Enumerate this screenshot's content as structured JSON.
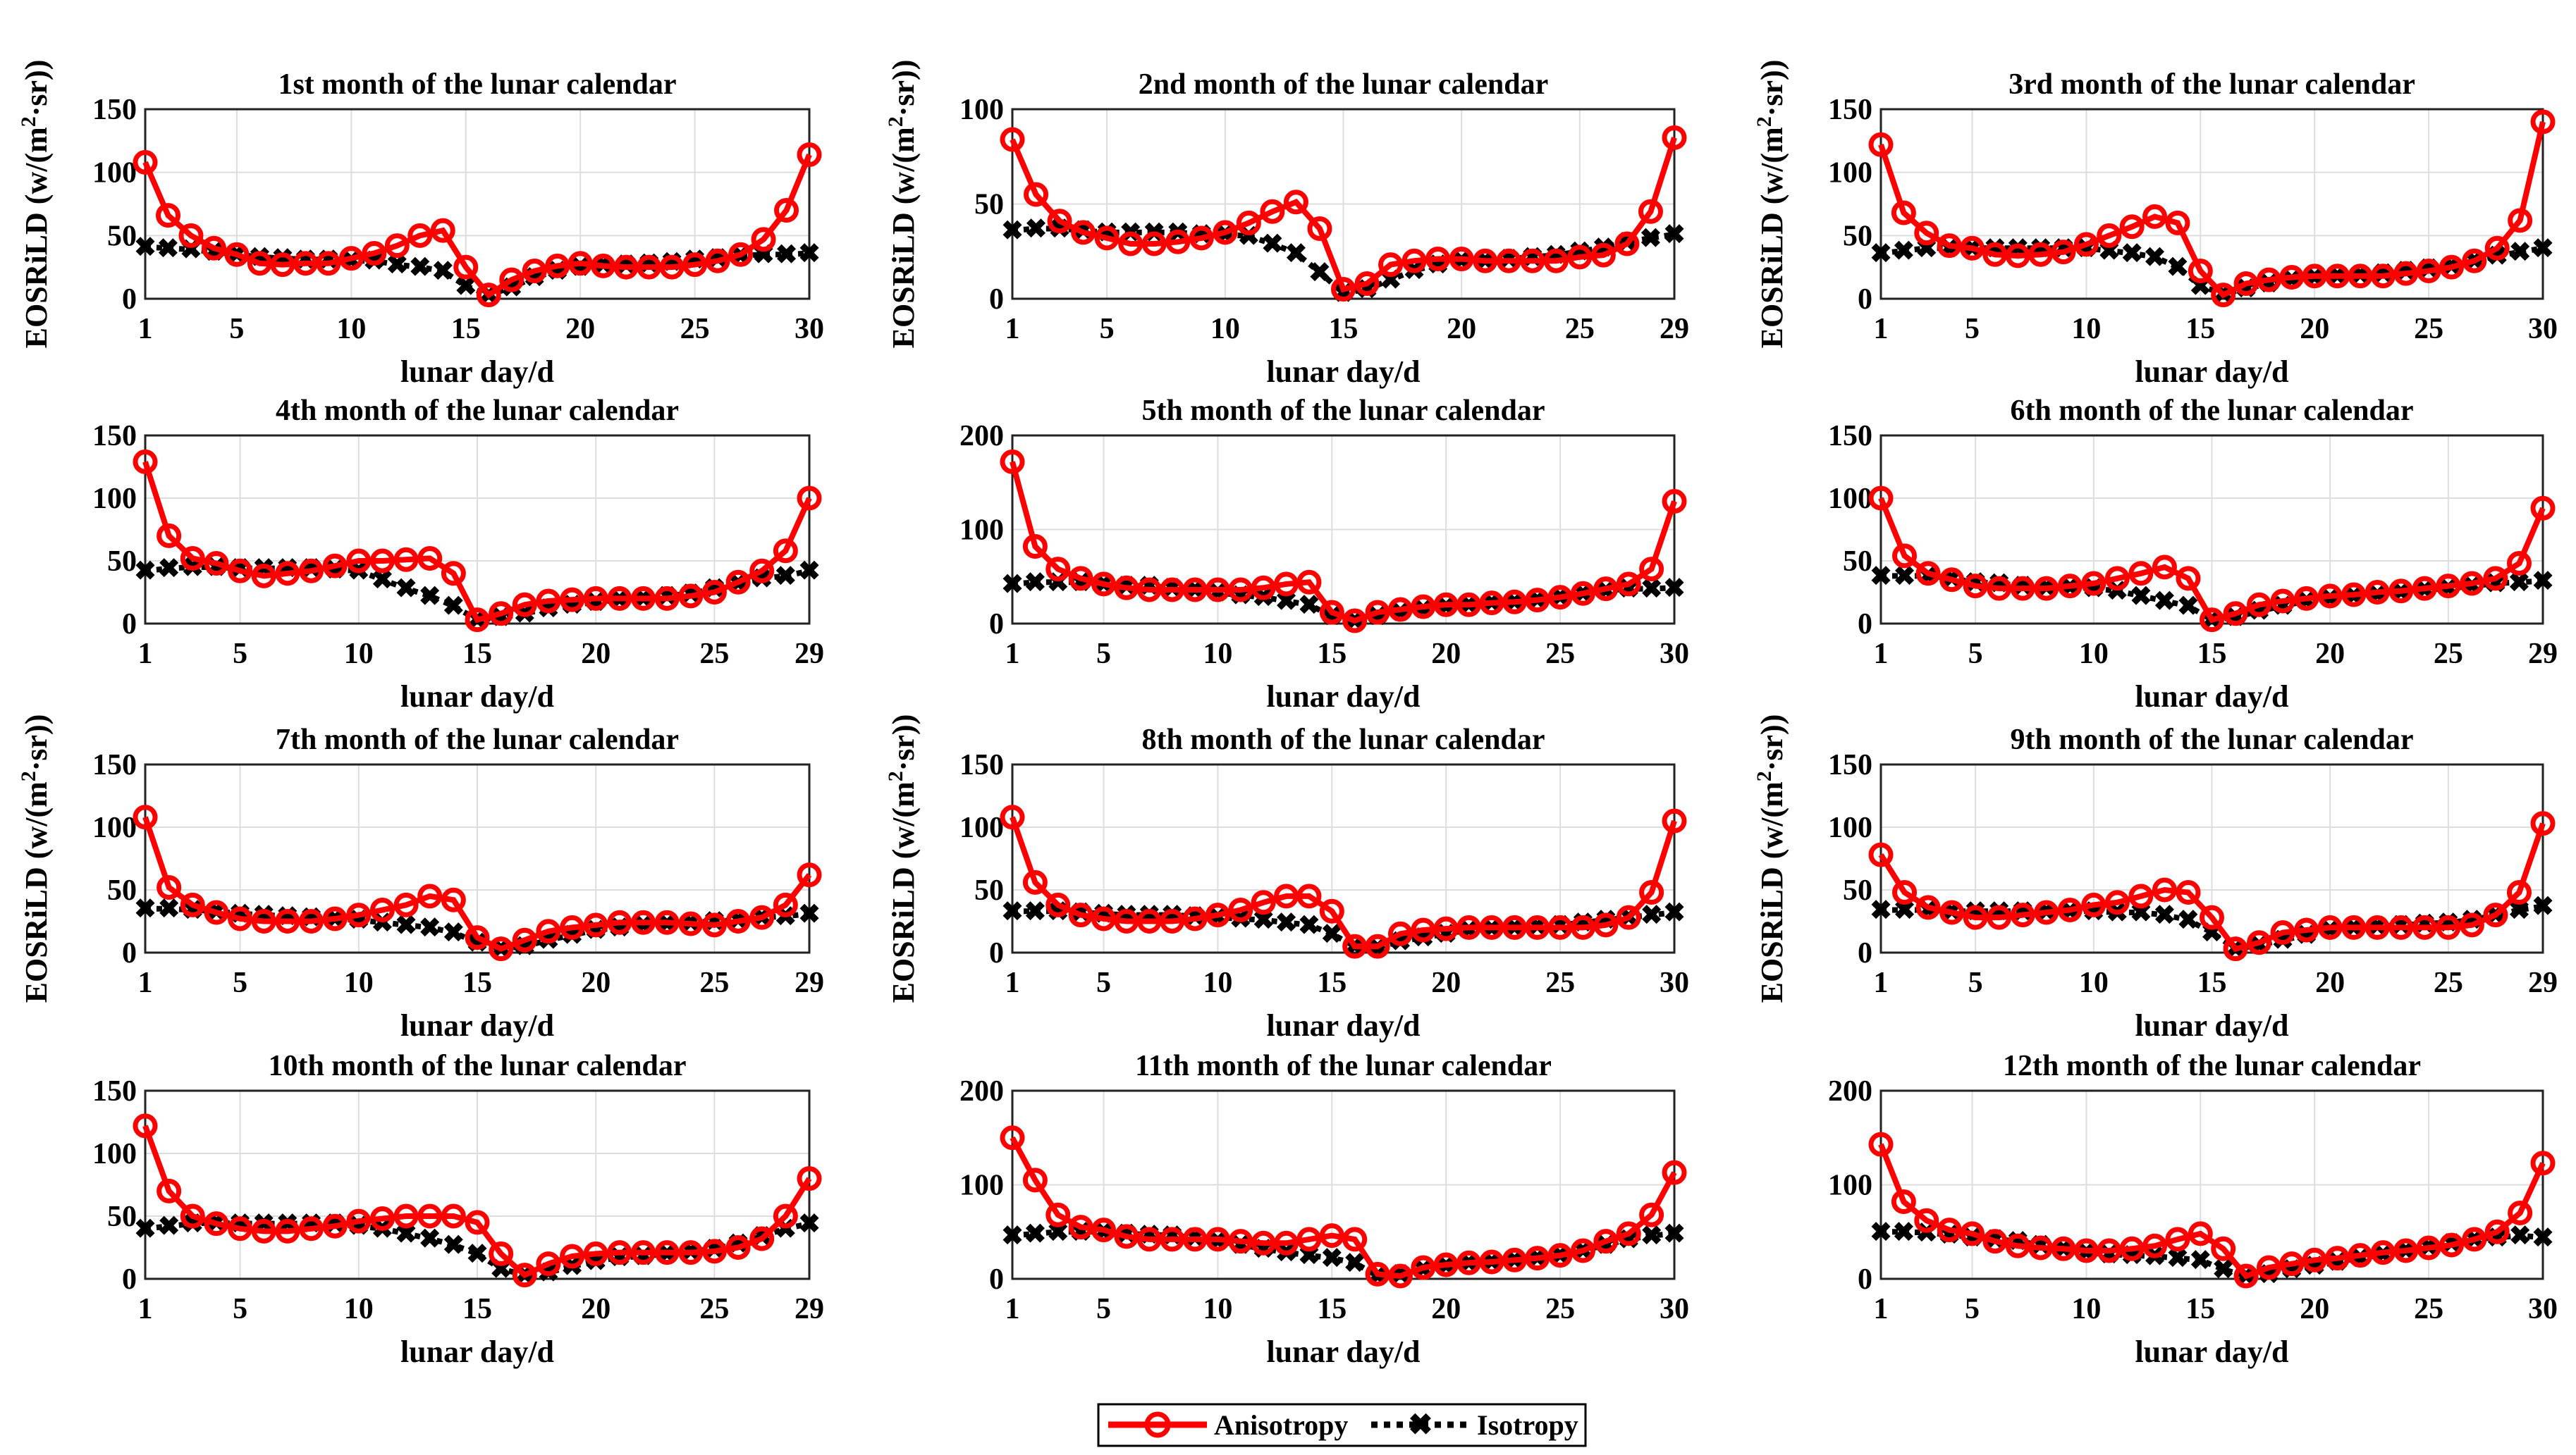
{
  "colors": {
    "anisotropy": "#ff0000",
    "isotropy": "#000000",
    "grid": "#dddddd"
  },
  "ylabel_text": "EOSRiLD (w/(m",
  "ylabel_sup": "2",
  "ylabel_tail": "·sr))",
  "xlabel": "lunar day/d",
  "legend": {
    "anisotropy": "Anisotropy",
    "isotropy": "Isotropy"
  },
  "chart_data": [
    {
      "type": "line",
      "title": "1st month of the lunar calendar",
      "ylim": [
        0,
        150
      ],
      "yticks": [
        0,
        50,
        100,
        150
      ],
      "xticks": [
        1,
        5,
        10,
        15,
        20,
        25,
        30
      ],
      "days": 30,
      "series": [
        {
          "name": "Anisotropy",
          "values": [
            108,
            66,
            50,
            40,
            35,
            28,
            27,
            28,
            28,
            32,
            36,
            42,
            50,
            54,
            25,
            3,
            15,
            22,
            26,
            28,
            26,
            25,
            25,
            25,
            27,
            30,
            35,
            47,
            70,
            114
          ]
        },
        {
          "name": "Isotropy",
          "values": [
            41,
            40,
            39,
            37,
            35,
            33,
            32,
            31,
            31,
            30,
            30,
            27,
            25,
            22,
            10,
            3,
            9,
            17,
            22,
            25,
            27,
            27,
            28,
            29,
            31,
            32,
            34,
            35,
            35,
            36
          ]
        }
      ]
    },
    {
      "type": "line",
      "title": "2nd month of the lunar calendar",
      "ylim": [
        0,
        100
      ],
      "yticks": [
        0,
        50,
        100
      ],
      "xticks": [
        1,
        5,
        10,
        15,
        20,
        25,
        29
      ],
      "days": 29,
      "series": [
        {
          "name": "Anisotropy",
          "values": [
            84,
            55,
            41,
            35,
            32,
            29,
            29,
            30,
            32,
            35,
            40,
            46,
            51,
            37,
            5,
            8,
            18,
            20,
            21,
            21,
            20,
            20,
            20,
            20,
            22,
            23,
            29,
            46,
            85
          ]
        },
        {
          "name": "Isotropy",
          "values": [
            36,
            37,
            37,
            36,
            35,
            35,
            35,
            35,
            34,
            34,
            33,
            29,
            24,
            14,
            3,
            5,
            10,
            15,
            18,
            20,
            20,
            21,
            22,
            23,
            25,
            27,
            30,
            32,
            34
          ]
        }
      ]
    },
    {
      "type": "line",
      "title": "3rd month of the lunar calendar",
      "ylim": [
        0,
        150
      ],
      "yticks": [
        0,
        50,
        100,
        150
      ],
      "xticks": [
        1,
        5,
        10,
        15,
        20,
        25,
        30
      ],
      "days": 30,
      "series": [
        {
          "name": "Anisotropy",
          "values": [
            122,
            68,
            52,
            42,
            40,
            35,
            34,
            35,
            37,
            43,
            50,
            57,
            65,
            60,
            22,
            3,
            12,
            15,
            17,
            18,
            18,
            18,
            18,
            20,
            22,
            25,
            30,
            40,
            62,
            140
          ]
        },
        {
          "name": "Isotropy",
          "values": [
            36,
            38,
            40,
            40,
            40,
            40,
            40,
            40,
            40,
            40,
            38,
            36,
            33,
            25,
            10,
            4,
            8,
            12,
            15,
            17,
            18,
            19,
            20,
            22,
            24,
            26,
            30,
            34,
            37,
            40
          ]
        }
      ]
    },
    {
      "type": "line",
      "title": "4th month of the lunar calendar",
      "ylim": [
        0,
        150
      ],
      "yticks": [
        0,
        50,
        100,
        150
      ],
      "xticks": [
        1,
        5,
        10,
        15,
        20,
        25,
        29
      ],
      "days": 29,
      "series": [
        {
          "name": "Anisotropy",
          "values": [
            129,
            70,
            52,
            48,
            42,
            38,
            40,
            42,
            46,
            50,
            50,
            51,
            52,
            40,
            3,
            8,
            15,
            18,
            19,
            20,
            20,
            20,
            20,
            22,
            25,
            33,
            42,
            58,
            100
          ]
        },
        {
          "name": "Isotropy",
          "values": [
            42,
            44,
            45,
            45,
            44,
            44,
            44,
            44,
            43,
            42,
            35,
            28,
            22,
            14,
            3,
            5,
            8,
            12,
            15,
            17,
            19,
            20,
            22,
            24,
            28,
            32,
            36,
            38,
            42
          ]
        }
      ]
    },
    {
      "type": "line",
      "title": "5th month of the lunar calendar",
      "ylim": [
        0,
        200
      ],
      "yticks": [
        0,
        100,
        200
      ],
      "xticks": [
        1,
        5,
        10,
        15,
        20,
        25,
        30
      ],
      "days": 30,
      "series": [
        {
          "name": "Anisotropy",
          "values": [
            172,
            82,
            58,
            48,
            42,
            38,
            36,
            36,
            36,
            36,
            36,
            38,
            42,
            44,
            12,
            3,
            12,
            15,
            18,
            20,
            20,
            22,
            23,
            25,
            28,
            32,
            37,
            42,
            58,
            130
          ]
        },
        {
          "name": "Isotropy",
          "values": [
            42,
            44,
            44,
            44,
            42,
            40,
            40,
            38,
            36,
            33,
            30,
            28,
            24,
            20,
            8,
            3,
            8,
            12,
            15,
            18,
            20,
            22,
            23,
            25,
            28,
            32,
            35,
            37,
            37,
            38
          ]
        }
      ]
    },
    {
      "type": "line",
      "title": "6th month of the lunar calendar",
      "ylim": [
        0,
        150
      ],
      "yticks": [
        0,
        50,
        100,
        150
      ],
      "xticks": [
        1,
        5,
        10,
        15,
        20,
        25,
        29
      ],
      "days": 29,
      "series": [
        {
          "name": "Anisotropy",
          "values": [
            100,
            54,
            40,
            35,
            30,
            28,
            28,
            28,
            30,
            32,
            36,
            40,
            45,
            36,
            3,
            8,
            15,
            18,
            20,
            22,
            23,
            25,
            26,
            28,
            30,
            32,
            36,
            48,
            92
          ]
        },
        {
          "name": "Isotropy",
          "values": [
            38,
            38,
            38,
            36,
            33,
            32,
            30,
            29,
            29,
            28,
            26,
            22,
            18,
            14,
            3,
            5,
            10,
            14,
            18,
            20,
            22,
            23,
            25,
            27,
            28,
            30,
            32,
            33,
            34
          ]
        }
      ]
    },
    {
      "type": "line",
      "title": "7th month of the lunar calendar",
      "ylim": [
        0,
        150
      ],
      "yticks": [
        0,
        50,
        100,
        150
      ],
      "xticks": [
        1,
        5,
        10,
        15,
        20,
        25,
        29
      ],
      "days": 29,
      "series": [
        {
          "name": "Anisotropy",
          "values": [
            108,
            52,
            38,
            32,
            27,
            25,
            25,
            25,
            27,
            30,
            34,
            38,
            45,
            42,
            12,
            3,
            10,
            17,
            20,
            22,
            24,
            24,
            24,
            23,
            22,
            25,
            28,
            38,
            62
          ]
        },
        {
          "name": "Isotropy",
          "values": [
            35,
            35,
            34,
            33,
            31,
            30,
            29,
            28,
            27,
            26,
            24,
            22,
            20,
            16,
            8,
            3,
            5,
            10,
            14,
            18,
            20,
            22,
            23,
            24,
            25,
            26,
            28,
            29,
            31
          ]
        }
      ]
    },
    {
      "type": "line",
      "title": "8th month of the lunar calendar",
      "ylim": [
        0,
        150
      ],
      "yticks": [
        0,
        50,
        100,
        150
      ],
      "xticks": [
        1,
        5,
        10,
        15,
        20,
        25,
        30
      ],
      "days": 30,
      "series": [
        {
          "name": "Anisotropy",
          "values": [
            108,
            56,
            38,
            30,
            27,
            25,
            25,
            25,
            27,
            30,
            34,
            40,
            45,
            45,
            33,
            5,
            5,
            15,
            18,
            19,
            20,
            20,
            20,
            20,
            20,
            20,
            22,
            28,
            48,
            105
          ]
        },
        {
          "name": "Isotropy",
          "values": [
            33,
            33,
            33,
            32,
            31,
            30,
            30,
            30,
            29,
            28,
            27,
            26,
            24,
            22,
            15,
            5,
            4,
            9,
            12,
            15,
            18,
            19,
            20,
            21,
            22,
            24,
            26,
            28,
            30,
            32
          ]
        }
      ]
    },
    {
      "type": "line",
      "title": "9th month of the lunar calendar",
      "ylim": [
        0,
        150
      ],
      "yticks": [
        0,
        50,
        100,
        150
      ],
      "xticks": [
        1,
        5,
        10,
        15,
        20,
        25,
        29
      ],
      "days": 29,
      "series": [
        {
          "name": "Anisotropy",
          "values": [
            78,
            48,
            36,
            32,
            28,
            28,
            30,
            32,
            34,
            38,
            40,
            45,
            50,
            48,
            28,
            3,
            8,
            16,
            18,
            20,
            20,
            20,
            20,
            20,
            20,
            22,
            30,
            48,
            103
          ]
        },
        {
          "name": "Isotropy",
          "values": [
            34,
            34,
            34,
            33,
            33,
            33,
            33,
            33,
            33,
            33,
            32,
            32,
            30,
            26,
            16,
            3,
            6,
            10,
            14,
            18,
            20,
            21,
            22,
            23,
            24,
            26,
            30,
            34,
            37
          ]
        }
      ]
    },
    {
      "type": "line",
      "title": "10th month of the lunar calendar",
      "ylim": [
        0,
        150
      ],
      "yticks": [
        0,
        50,
        100,
        150
      ],
      "xticks": [
        1,
        5,
        10,
        15,
        20,
        25,
        29
      ],
      "days": 29,
      "series": [
        {
          "name": "Anisotropy",
          "values": [
            122,
            70,
            50,
            44,
            40,
            38,
            38,
            40,
            42,
            46,
            48,
            50,
            50,
            50,
            45,
            20,
            3,
            12,
            18,
            20,
            21,
            21,
            21,
            21,
            22,
            25,
            32,
            50,
            80
          ]
        },
        {
          "name": "Isotropy",
          "values": [
            40,
            42,
            44,
            45,
            44,
            44,
            44,
            44,
            44,
            42,
            40,
            36,
            32,
            27,
            20,
            8,
            3,
            5,
            10,
            14,
            17,
            18,
            20,
            22,
            24,
            28,
            34,
            40,
            44
          ]
        }
      ]
    },
    {
      "type": "line",
      "title": "11th month of the lunar calendar",
      "ylim": [
        0,
        200
      ],
      "yticks": [
        0,
        100,
        200
      ],
      "xticks": [
        1,
        5,
        10,
        15,
        20,
        25,
        30
      ],
      "days": 30,
      "series": [
        {
          "name": "Anisotropy",
          "values": [
            150,
            105,
            68,
            55,
            52,
            45,
            42,
            42,
            42,
            42,
            40,
            38,
            38,
            42,
            46,
            42,
            5,
            3,
            12,
            15,
            17,
            18,
            20,
            22,
            25,
            30,
            40,
            48,
            68,
            113
          ]
        },
        {
          "name": "Isotropy",
          "values": [
            46,
            48,
            50,
            50,
            50,
            48,
            47,
            46,
            44,
            40,
            36,
            32,
            28,
            25,
            22,
            17,
            3,
            5,
            10,
            14,
            17,
            18,
            20,
            22,
            25,
            30,
            36,
            42,
            46,
            48
          ]
        }
      ]
    },
    {
      "type": "line",
      "title": "12th month of the lunar calendar",
      "ylim": [
        0,
        200
      ],
      "yticks": [
        0,
        100,
        200
      ],
      "xticks": [
        1,
        5,
        10,
        15,
        20,
        25,
        30
      ],
      "days": 30,
      "series": [
        {
          "name": "Anisotropy",
          "values": [
            143,
            82,
            62,
            52,
            48,
            40,
            35,
            33,
            32,
            30,
            30,
            32,
            35,
            42,
            48,
            32,
            3,
            12,
            16,
            20,
            22,
            25,
            28,
            30,
            33,
            36,
            42,
            50,
            70,
            123
          ]
        },
        {
          "name": "Isotropy",
          "values": [
            50,
            50,
            49,
            47,
            44,
            42,
            40,
            36,
            32,
            28,
            26,
            25,
            24,
            22,
            20,
            10,
            3,
            5,
            10,
            14,
            18,
            22,
            26,
            30,
            34,
            38,
            42,
            44,
            46,
            44
          ]
        }
      ]
    }
  ]
}
